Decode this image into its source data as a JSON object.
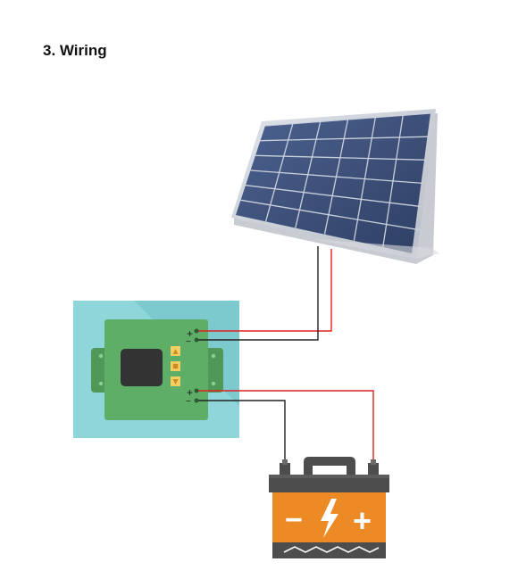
{
  "page": {
    "title": "3. Wiring"
  },
  "diagram": {
    "components": [
      {
        "name": "solar-panel-icon"
      },
      {
        "name": "charge-controller-icon"
      },
      {
        "name": "battery-icon"
      }
    ],
    "controller_terminals": {
      "pv_plus": "+",
      "pv_minus": "−",
      "batt_plus": "+",
      "batt_minus": "−"
    },
    "battery_symbols": {
      "minus": "−",
      "plus": "+"
    },
    "colors": {
      "positive_wire": "#e02020",
      "negative_wire": "#222222",
      "controller_body": "#5fae68",
      "controller_bg": "#8fd6da",
      "battery_body": "#ec8a25",
      "battery_dark": "#4d4d4d",
      "panel_cell": "#3d5179"
    }
  }
}
